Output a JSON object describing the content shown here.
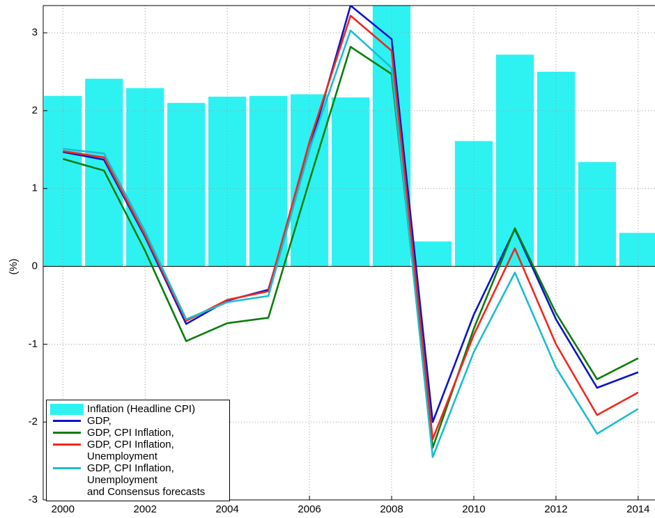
{
  "chart_data": {
    "type": "bar_line",
    "ylabel": "(%)",
    "x": [
      2000,
      2001,
      2002,
      2003,
      2004,
      2005,
      2006,
      2007,
      2008,
      2009,
      2010,
      2011,
      2012,
      2013,
      2014
    ],
    "xlim": [
      1999.52,
      2014.41
    ],
    "xticks": [
      2000,
      2002,
      2004,
      2006,
      2008,
      2010,
      2012,
      2014
    ],
    "ylim": [
      -3,
      3.35
    ],
    "yticks": [
      -3,
      -2,
      -1,
      0,
      1,
      2,
      3
    ],
    "grid": true,
    "legend": "lower left",
    "series": [
      {
        "name": "Inflation (Headline CPI)",
        "kind": "bar",
        "color": "#2ef2f2",
        "values": [
          2.19,
          2.41,
          2.29,
          2.1,
          2.18,
          2.19,
          2.21,
          2.17,
          3.84,
          0.32,
          1.61,
          2.72,
          2.5,
          1.34,
          0.43
        ]
      },
      {
        "name": "GDP,",
        "kind": "line",
        "color": "#0a14c8",
        "values": [
          1.47,
          1.37,
          0.38,
          -0.74,
          -0.44,
          -0.3,
          1.5,
          3.35,
          2.92,
          -2.0,
          -0.62,
          0.48,
          -0.68,
          -1.56,
          -1.36
        ]
      },
      {
        "name": "GDP, CPI Inflation,",
        "kind": "line",
        "color": "#0a7d0a",
        "values": [
          1.38,
          1.23,
          0.2,
          -0.96,
          -0.73,
          -0.66,
          1.1,
          2.82,
          2.47,
          -2.33,
          -0.8,
          0.49,
          -0.6,
          -1.45,
          -1.18
        ]
      },
      {
        "name": "GDP, CPI Inflation, Unemployment",
        "kind": "line",
        "color": "#f0281e",
        "values": [
          1.48,
          1.4,
          0.4,
          -0.7,
          -0.43,
          -0.32,
          1.6,
          3.22,
          2.77,
          -2.22,
          -0.88,
          0.23,
          -1.0,
          -1.91,
          -1.62
        ]
      },
      {
        "name": "GDP, CPI Inflation, Unemployment\n and Consensus forecasts",
        "kind": "line",
        "color": "#1cbcd0",
        "values": [
          1.51,
          1.45,
          0.45,
          -0.68,
          -0.46,
          -0.38,
          1.5,
          3.03,
          2.55,
          -2.45,
          -1.1,
          -0.08,
          -1.3,
          -2.15,
          -1.83
        ]
      }
    ]
  }
}
